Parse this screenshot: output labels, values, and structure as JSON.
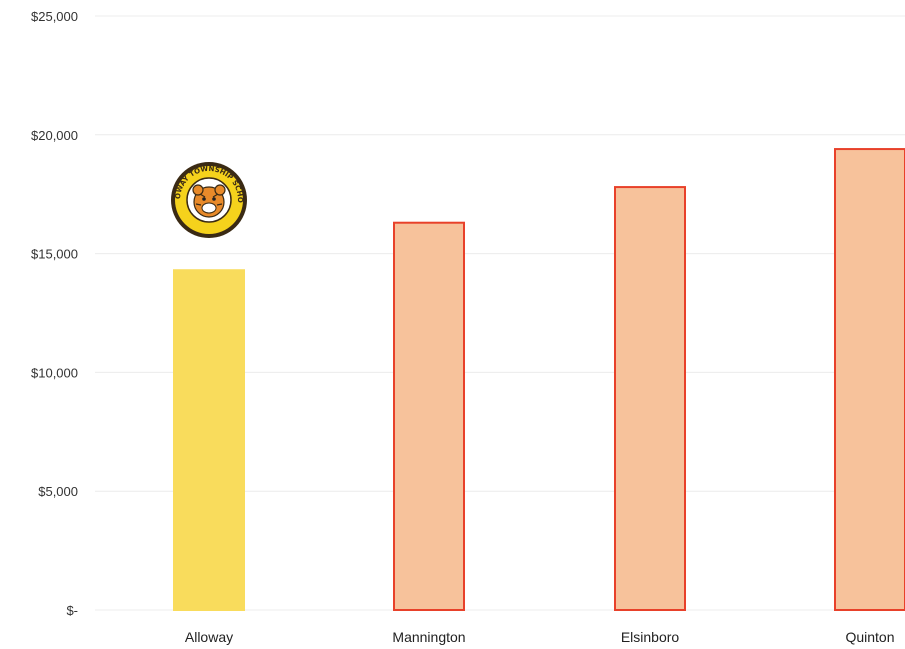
{
  "chart_data": {
    "type": "bar",
    "categories": [
      "Alloway",
      "Mannington",
      "Elsinboro",
      "Quinton"
    ],
    "values": [
      14300,
      16300,
      17800,
      19400
    ],
    "ylim": [
      0,
      25000
    ],
    "y_ticks": [
      0,
      5000,
      10000,
      15000,
      20000,
      25000
    ],
    "y_tick_labels": [
      "$-",
      "$5,000",
      "$10,000",
      "$15,000",
      "$20,000",
      "$25,000"
    ],
    "grid": true,
    "legend": "none",
    "bar_fills": [
      "#f9dc5c",
      "#f7c29b",
      "#f7c29b",
      "#f7c29b"
    ],
    "bar_strokes": [
      "#f9dc5c",
      "#e8412a",
      "#e8412a",
      "#e8412a"
    ],
    "highlighted_category": "Alloway",
    "logo": {
      "icon": "tiger-mascot-seal-icon",
      "text": "ALLOWAY TOWNSHIP SCHOOL",
      "fill": "#f5d21c",
      "ring": "#3a2a14"
    }
  }
}
